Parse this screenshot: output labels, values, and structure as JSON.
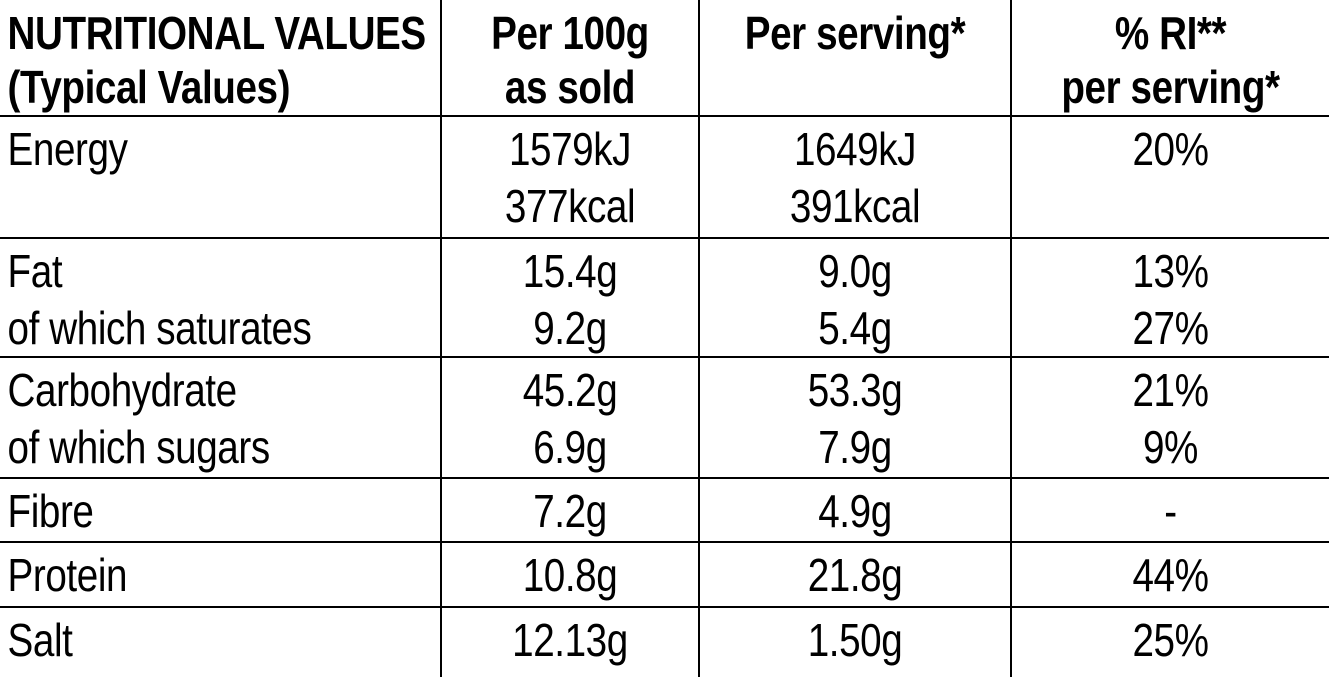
{
  "colors": {
    "background": "#ffffff",
    "text": "#000000",
    "rules": "#000000"
  },
  "table": {
    "header": {
      "label_line1": "NUTRITIONAL VALUES",
      "label_line2": "(Typical Values)",
      "per_100g_line1": "Per 100g",
      "per_100g_line2": "as sold",
      "per_serving": "Per serving*",
      "ri_line1": "% RI**",
      "ri_line2": "per serving*"
    },
    "columns": [
      "NUTRITIONAL VALUES (Typical Values)",
      "Per 100g as sold",
      "Per serving*",
      "% RI** per serving*"
    ],
    "rows": [
      {
        "label": [
          "Energy"
        ],
        "per_100g": [
          "1579kJ",
          "377kcal"
        ],
        "per_serving": [
          "1649kJ",
          "391kcal"
        ],
        "ri_per_serving": [
          "20%"
        ]
      },
      {
        "label": [
          "Fat",
          "of which saturates"
        ],
        "per_100g": [
          "15.4g",
          "9.2g"
        ],
        "per_serving": [
          "9.0g",
          "5.4g"
        ],
        "ri_per_serving": [
          "13%",
          "27%"
        ]
      },
      {
        "label": [
          "Carbohydrate",
          "of which sugars"
        ],
        "per_100g": [
          "45.2g",
          "6.9g"
        ],
        "per_serving": [
          "53.3g",
          "7.9g"
        ],
        "ri_per_serving": [
          "21%",
          "9%"
        ]
      },
      {
        "label": [
          "Fibre"
        ],
        "per_100g": [
          "7.2g"
        ],
        "per_serving": [
          "4.9g"
        ],
        "ri_per_serving": [
          "-"
        ]
      },
      {
        "label": [
          "Protein"
        ],
        "per_100g": [
          "10.8g"
        ],
        "per_serving": [
          "21.8g"
        ],
        "ri_per_serving": [
          "44%"
        ]
      },
      {
        "label": [
          "Salt"
        ],
        "per_100g": [
          "12.13g"
        ],
        "per_serving": [
          "1.50g"
        ],
        "ri_per_serving": [
          "25%"
        ]
      }
    ]
  }
}
